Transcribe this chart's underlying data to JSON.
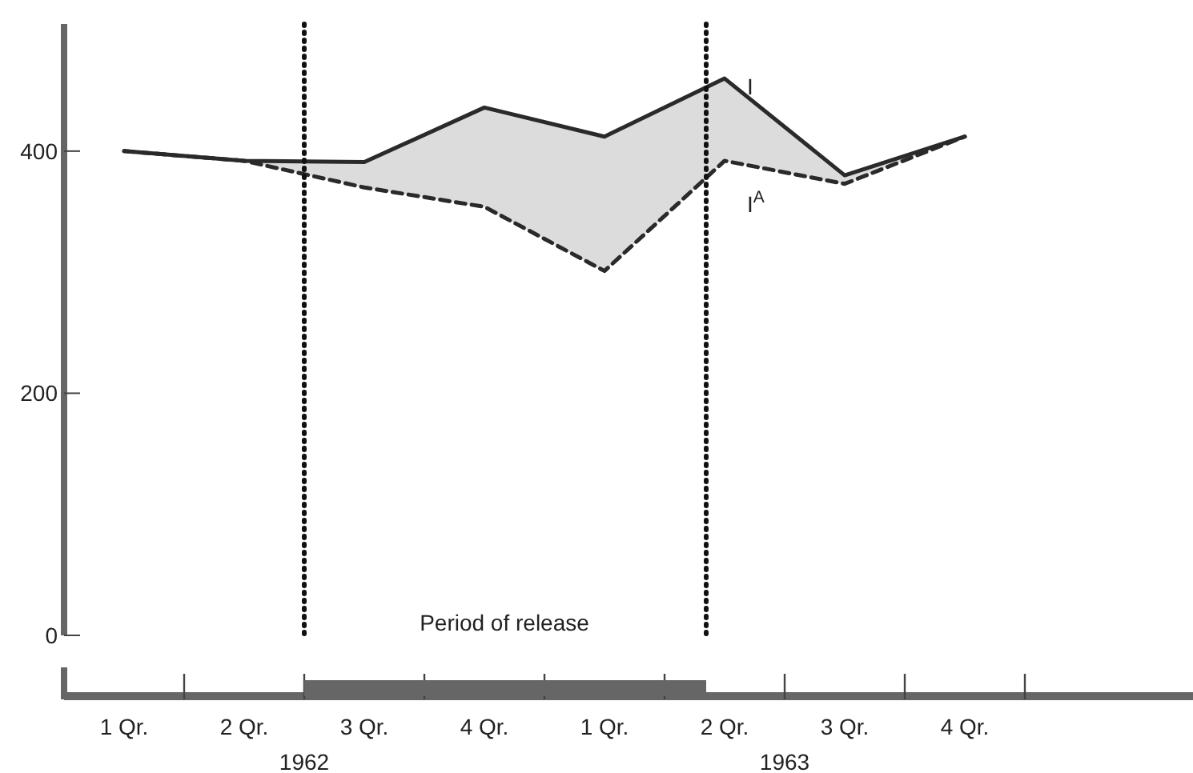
{
  "chart_data": {
    "type": "line",
    "ylim": [
      0,
      505
    ],
    "yticks": [
      0,
      200,
      400
    ],
    "categories": [
      "1 Qr.",
      "2 Qr.",
      "3 Qr.",
      "4 Qr.",
      "1 Qr.",
      "2 Qr.",
      "3 Qr.",
      "4 Qr."
    ],
    "series": [
      {
        "name": "I",
        "color": "#2a2a2a",
        "line_style": "solid",
        "values": [
          400,
          392,
          391,
          436,
          412,
          460,
          380,
          412
        ],
        "lower": [
          400,
          392,
          370,
          354,
          301,
          392,
          373,
          412
        ],
        "upper": [
          400,
          392,
          391,
          436,
          412,
          460,
          380,
          412
        ]
      },
      {
        "name": "I$^{A}$",
        "color": "#2a2a2a",
        "line_style": "dashed",
        "values": [
          400,
          392,
          370,
          354,
          301,
          392,
          373,
          412
        ]
      }
    ],
    "annotations": [
      "1962",
      "1963",
      "Period of release"
    ],
    "marker": "none",
    "legend": false,
    "grid": false
  }
}
